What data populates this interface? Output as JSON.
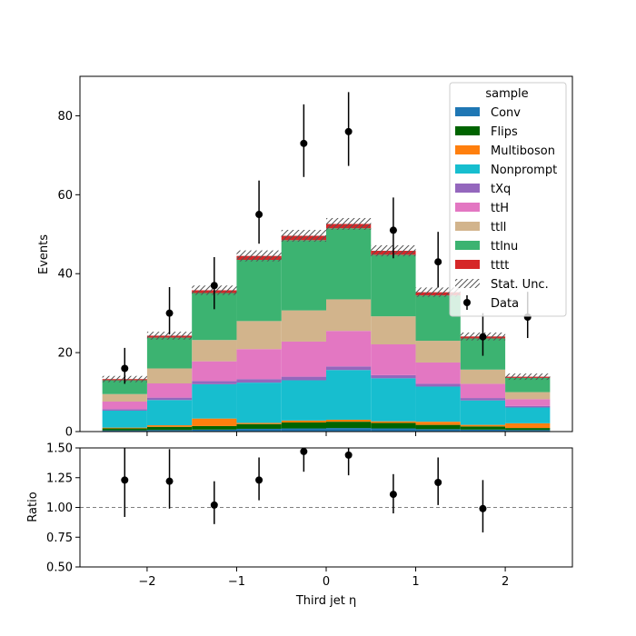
{
  "chart_data": {
    "type": "bar",
    "stacked": true,
    "bin_edges": [
      -2.5,
      -2.0,
      -1.5,
      -1.0,
      -0.5,
      0.0,
      0.5,
      1.0,
      1.5,
      2.0,
      2.5
    ],
    "xlabel": "Third jet  η",
    "ylabel": "Events",
    "ylim": [
      0,
      90
    ],
    "xlim": [
      -2.75,
      2.75
    ],
    "x_ticks": [
      -2,
      -1,
      0,
      1,
      2
    ],
    "x_tick_labels": [
      "−2",
      "−1",
      "0",
      "1",
      "2"
    ],
    "y_ticks": [
      0,
      20,
      40,
      60,
      80
    ],
    "y_tick_labels": [
      "0",
      "20",
      "40",
      "60",
      "80"
    ],
    "legend": {
      "title": "sample",
      "placement": "top-right"
    },
    "series": [
      {
        "name": "Conv",
        "color": "#1f77b4",
        "values": [
          0.3,
          0.4,
          0.5,
          0.7,
          0.8,
          0.9,
          0.8,
          0.6,
          0.5,
          0.4
        ]
      },
      {
        "name": "Flips",
        "color": "#006400",
        "values": [
          0.5,
          0.8,
          0.9,
          1.2,
          1.5,
          1.6,
          1.4,
          1.1,
          0.8,
          0.5
        ]
      },
      {
        "name": "Multiboson",
        "color": "#ff7f0e",
        "values": [
          0.2,
          0.4,
          1.9,
          0.3,
          0.5,
          0.5,
          0.4,
          0.8,
          0.4,
          1.2
        ]
      },
      {
        "name": "Nonprompt",
        "color": "#17becf",
        "values": [
          4.3,
          6.4,
          8.7,
          10.2,
          10.2,
          12.6,
          10.9,
          8.9,
          6.2,
          4.0
        ]
      },
      {
        "name": "tXq",
        "color": "#9467bd",
        "values": [
          0.4,
          0.6,
          0.8,
          0.9,
          0.9,
          0.9,
          0.8,
          0.7,
          0.6,
          0.4
        ]
      },
      {
        "name": "ttH",
        "color": "#e377c2",
        "values": [
          1.9,
          3.6,
          5.0,
          7.6,
          8.9,
          9.0,
          7.8,
          5.4,
          3.6,
          1.7
        ]
      },
      {
        "name": "ttll",
        "color": "#d2b48c",
        "values": [
          1.9,
          3.8,
          5.4,
          7.1,
          7.9,
          8.0,
          7.1,
          5.5,
          3.6,
          1.8
        ]
      },
      {
        "name": "ttlnu",
        "color": "#3cb371",
        "values": [
          3.5,
          7.8,
          11.9,
          15.5,
          17.8,
          18.0,
          15.6,
          11.5,
          7.9,
          3.6
        ]
      },
      {
        "name": "tttt",
        "color": "#d62728",
        "values": [
          0.3,
          0.5,
          0.7,
          1.0,
          1.1,
          1.1,
          1.0,
          0.8,
          0.5,
          0.3
        ]
      }
    ],
    "stat_unc": {
      "name": "Stat. Unc.",
      "values": [
        0.8,
        1.0,
        1.2,
        1.4,
        1.5,
        1.5,
        1.4,
        1.2,
        1.0,
        0.8
      ]
    },
    "data": {
      "name": "Data",
      "values": [
        16,
        30,
        37,
        55,
        73,
        76,
        51,
        43,
        24,
        29
      ],
      "err_up": [
        5.2,
        6.6,
        7.2,
        8.6,
        9.9,
        10.0,
        8.3,
        7.6,
        6.0,
        6.4
      ],
      "err_down": [
        3.9,
        5.4,
        6.0,
        7.4,
        8.5,
        8.7,
        7.1,
        6.5,
        4.8,
        5.3
      ]
    },
    "ratio": {
      "ylabel": "Ratio",
      "ylim": [
        0.5,
        1.5
      ],
      "y_ticks": [
        0.5,
        0.75,
        1.0,
        1.25,
        1.5
      ],
      "y_tick_labels": [
        "0.50",
        "0.75",
        "1.00",
        "1.25",
        "1.50"
      ],
      "reference_line": 1.0,
      "values": [
        1.23,
        1.22,
        1.02,
        1.23,
        1.47,
        1.44,
        1.11,
        1.21,
        0.99,
        null
      ],
      "err_up": [
        0.31,
        0.27,
        0.2,
        0.19,
        0.17,
        0.16,
        0.17,
        0.21,
        0.24,
        null
      ],
      "err_down": [
        0.31,
        0.23,
        0.16,
        0.17,
        0.17,
        0.17,
        0.16,
        0.19,
        0.2,
        null
      ]
    }
  }
}
